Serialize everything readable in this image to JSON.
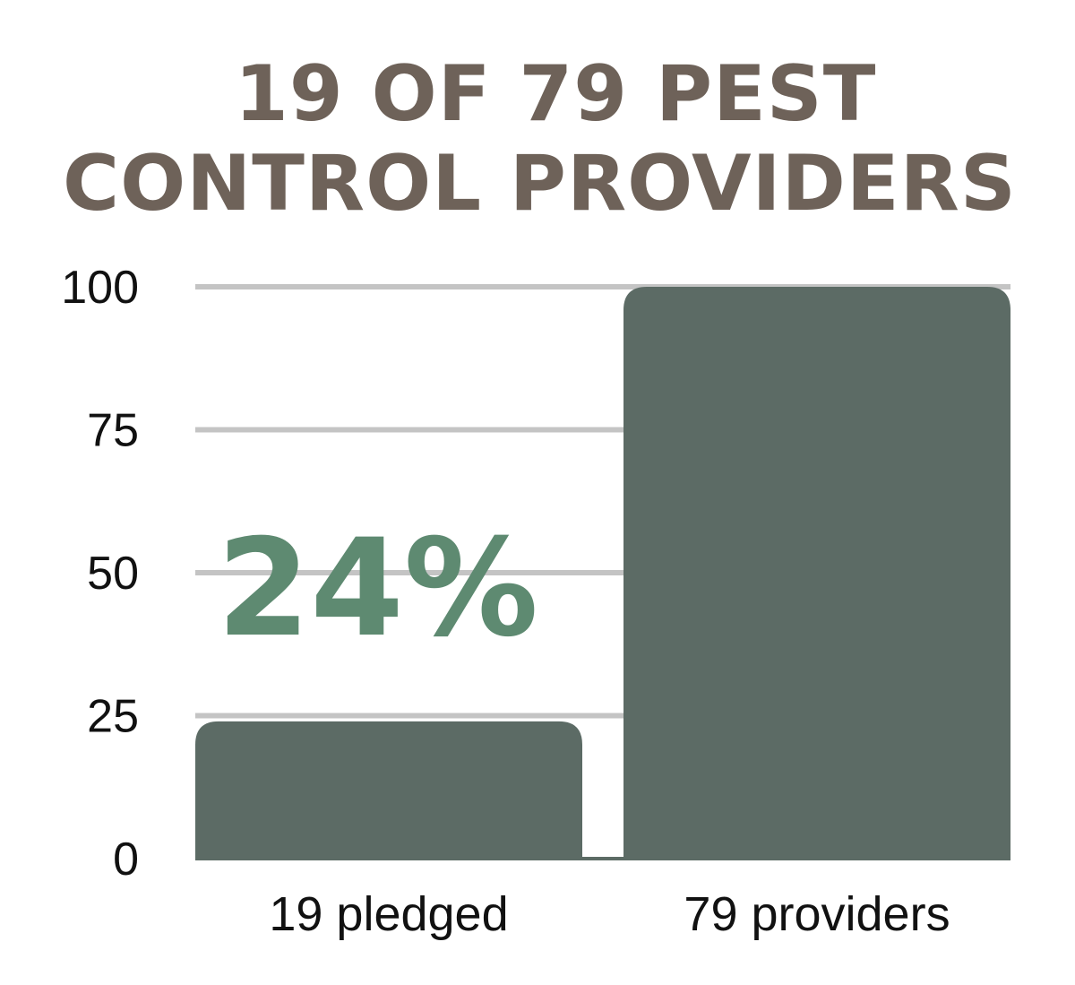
{
  "title_lines": [
    "19 OF 79 PEST",
    "CONTROL PROVIDERS"
  ],
  "highlight": "24%",
  "colors": {
    "title": "#6e6259",
    "bar": "#5c6b65",
    "highlight": "#5e8a71",
    "grid": "#c4c4c4",
    "axis_text": "#111111"
  },
  "chart_data": {
    "type": "bar",
    "title": "19 OF 79 PEST CONTROL PROVIDERS",
    "categories": [
      "19 pledged",
      "79 providers"
    ],
    "values": [
      24,
      100
    ],
    "yticks": [
      0,
      25,
      50,
      75,
      100
    ],
    "ylim": [
      0,
      100
    ],
    "grid": true,
    "xlabel": "",
    "ylabel": ""
  }
}
